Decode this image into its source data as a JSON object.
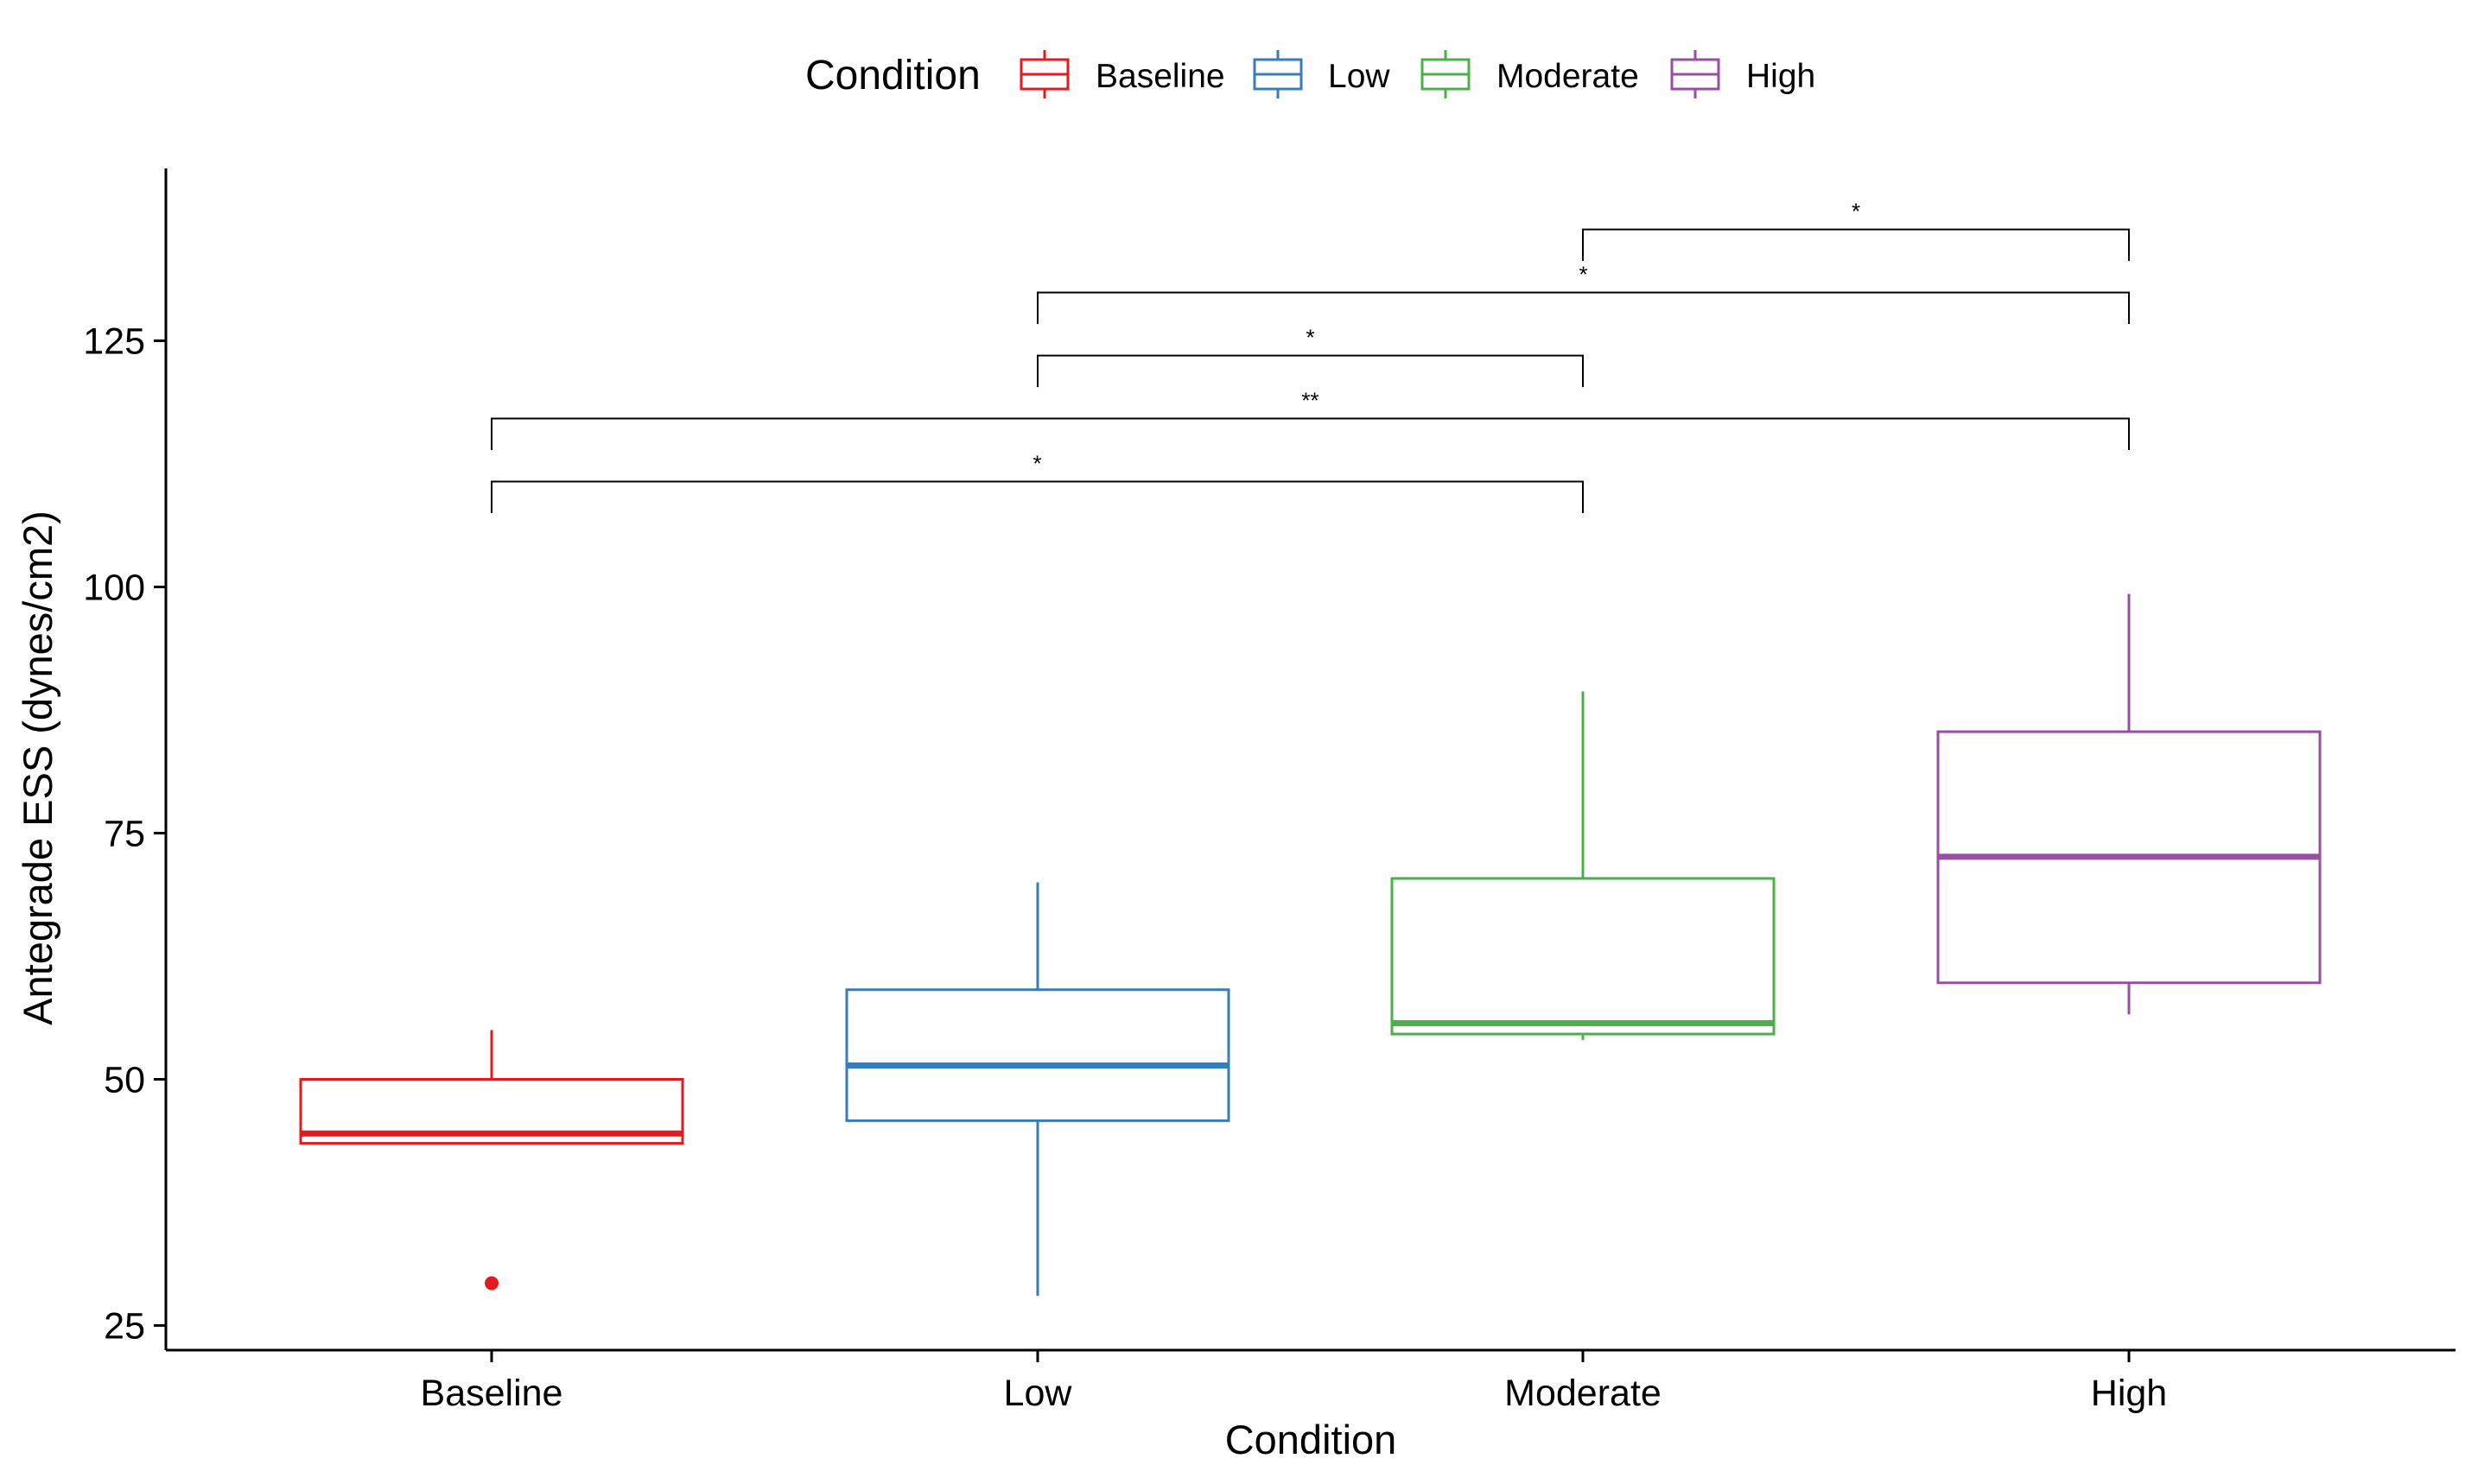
{
  "chart_data": {
    "type": "boxplot",
    "xlabel": "Condition",
    "ylabel": "Antegrade ESS (dynes/cm2)",
    "ylim": [
      22.5,
      142.5
    ],
    "yticks": [
      25,
      50,
      75,
      100,
      125
    ],
    "ytick_labels": [
      "25",
      "50",
      "75",
      "100",
      "125"
    ],
    "categories": [
      "Baseline",
      "Low",
      "Moderate",
      "High"
    ],
    "legend": {
      "title": "Condition",
      "position": "top",
      "items": [
        "Baseline",
        "Low",
        "Moderate",
        "High"
      ]
    },
    "grid": false,
    "series": [
      {
        "name": "Baseline",
        "color": "#E41A1C",
        "whisker_low": 43.5,
        "q1": 43.5,
        "median": 44.5,
        "q3": 50.0,
        "whisker_high": 55.0,
        "outliers": [
          29.3
        ]
      },
      {
        "name": "Low",
        "color": "#377EB8",
        "whisker_low": 28.0,
        "q1": 45.8,
        "median": 51.4,
        "q3": 59.1,
        "whisker_high": 70.0,
        "outliers": []
      },
      {
        "name": "Moderate",
        "color": "#4DAF4A",
        "whisker_low": 54.0,
        "q1": 54.6,
        "median": 55.7,
        "q3": 70.4,
        "whisker_high": 89.4,
        "outliers": []
      },
      {
        "name": "High",
        "color": "#984EA3",
        "whisker_low": 56.6,
        "q1": 59.8,
        "median": 72.6,
        "q3": 85.3,
        "whisker_high": 99.3,
        "outliers": []
      }
    ],
    "comparisons": [
      {
        "group1": "Baseline",
        "group2": "Moderate",
        "label": "*",
        "y": 110.7,
        "tick_low": 107.5
      },
      {
        "group1": "Baseline",
        "group2": "High",
        "label": "**",
        "y": 117.1,
        "tick_low": 113.9
      },
      {
        "group1": "Low",
        "group2": "Moderate",
        "label": "*",
        "y": 123.5,
        "tick_low": 120.3
      },
      {
        "group1": "Low",
        "group2": "High",
        "label": "*",
        "y": 129.9,
        "tick_low": 126.7
      },
      {
        "group1": "Moderate",
        "group2": "High",
        "label": "*",
        "y": 136.3,
        "tick_low": 133.1
      }
    ]
  }
}
